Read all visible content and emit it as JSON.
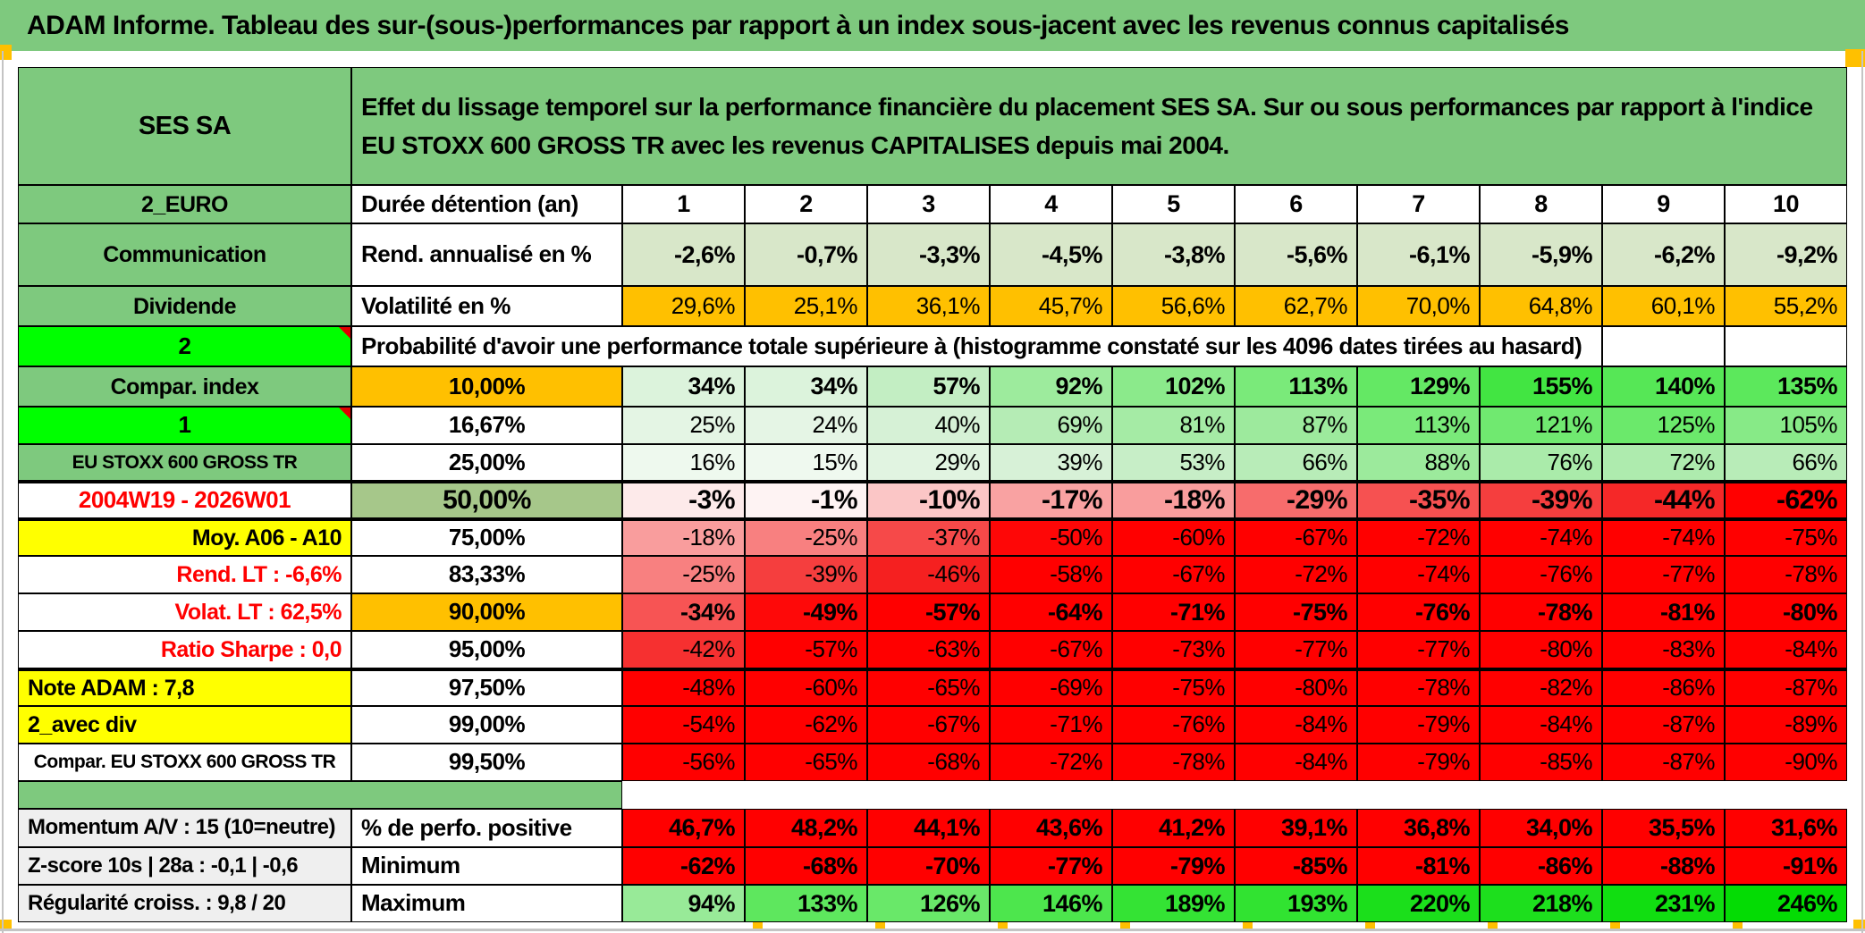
{
  "banner": "ADAM Informe. Tableau des sur-(sous-)performances par rapport à un index sous-jacent avec les revenus connus capitalisés",
  "header": {
    "instrument": "SES SA",
    "description": "Effet du lissage temporel sur la performance financière du placement SES SA. Sur ou sous performances par rapport à l'indice EU STOXX 600 GROSS TR avec les revenus CAPITALISES depuis mai 2004."
  },
  "colors": {
    "band_green": "#7ec97e",
    "bright_green": "#00ff00",
    "orange": "#ffc000",
    "yellow": "#ffff00",
    "light_green": "#d8e7c9",
    "olive_green": "#a6c78a",
    "grey_label": "#efefef",
    "pure_red": "#ff0000",
    "marker_red": "#e00000"
  },
  "grid_rows": [
    {
      "type": "header"
    },
    {
      "type": "data",
      "key": "duree-detention",
      "left": {
        "text": "2_EURO",
        "bg": "#7ec97e",
        "bold": true,
        "align": "center",
        "size": 25
      },
      "mid": {
        "text": "Durée détention (an)",
        "bg": "#ffffff",
        "bold": true,
        "align": "left",
        "size": 26
      },
      "cells": {
        "values": [
          "1",
          "2",
          "3",
          "4",
          "5",
          "6",
          "7",
          "8",
          "9",
          "10"
        ],
        "bg": "#ffffff",
        "bold": true,
        "align": "center",
        "size": 27
      }
    },
    {
      "type": "data",
      "key": "rend-annualise",
      "left": {
        "text": "Communication",
        "bg": "#7ec97e",
        "bold": true,
        "align": "center",
        "size": 25
      },
      "mid": {
        "text": "Rend. annualisé en %",
        "bg": "#ffffff",
        "bold": true,
        "align": "left",
        "size": 26
      },
      "cells": {
        "values": [
          "-2,6%",
          "-0,7%",
          "-3,3%",
          "-4,5%",
          "-3,8%",
          "-5,6%",
          "-6,1%",
          "-5,9%",
          "-6,2%",
          "-9,2%"
        ],
        "bg": "#d8e7c9",
        "bold": true,
        "align": "right",
        "size": 27
      }
    },
    {
      "type": "data",
      "key": "volatilite",
      "left": {
        "text": "Dividende",
        "bg": "#7ec97e",
        "bold": true,
        "align": "center",
        "size": 25
      },
      "mid": {
        "text": "Volatilité en %",
        "bg": "#ffffff",
        "bold": true,
        "align": "left",
        "size": 26
      },
      "cells": {
        "values": [
          "29,6%",
          "25,1%",
          "36,1%",
          "45,7%",
          "56,6%",
          "62,7%",
          "70,0%",
          "64,8%",
          "60,1%",
          "55,2%"
        ],
        "bg": "#ffc000",
        "bold": false,
        "align": "right",
        "size": 26
      }
    },
    {
      "type": "span",
      "key": "proba-header",
      "left": {
        "text": "2",
        "bg": "#00ff00",
        "bold": true,
        "align": "center",
        "size": 26,
        "marker": true
      },
      "span_text": "Probabilité d'avoir une performance totale supérieure à (histogramme constaté sur les 4096 dates tirées au hasard)",
      "empty_bg": "#ffffff"
    },
    {
      "type": "data",
      "key": "p10",
      "left": {
        "text": "Compar. index",
        "bg": "#7ec97e",
        "bold": true,
        "align": "center",
        "size": 25
      },
      "mid": {
        "text": "10,00%",
        "bg": "#ffc000",
        "bold": true,
        "align": "center",
        "size": 26
      },
      "cells": {
        "values": [
          "34%",
          "34%",
          "57%",
          "92%",
          "102%",
          "113%",
          "129%",
          "155%",
          "140%",
          "135%"
        ],
        "bg": [
          "#dcf3dc",
          "#dcf3dc",
          "#c3eec3",
          "#9deb9d",
          "#8bea8b",
          "#7aea7a",
          "#64e864",
          "#42e542",
          "#56e756",
          "#5ce85c"
        ],
        "bold": true,
        "align": "right",
        "size": 27
      }
    },
    {
      "type": "data",
      "key": "p16-67",
      "left": {
        "text": "1",
        "bg": "#00ff00",
        "bold": true,
        "align": "center",
        "size": 26,
        "marker": true
      },
      "mid": {
        "text": "16,67%",
        "bg": "#ffffff",
        "bold": true,
        "align": "center",
        "size": 26
      },
      "cells": {
        "values": [
          "25%",
          "24%",
          "40%",
          "69%",
          "81%",
          "87%",
          "113%",
          "121%",
          "125%",
          "105%"
        ],
        "bg": [
          "#e4f5e4",
          "#e5f5e5",
          "#d6f1d6",
          "#b5ecb5",
          "#a5eba5",
          "#9dea9d",
          "#7aea7a",
          "#70e970",
          "#6be96b",
          "#87ea87"
        ],
        "bold": false,
        "align": "right",
        "size": 26
      }
    },
    {
      "type": "data",
      "key": "p25",
      "left": {
        "text": "EU STOXX 600 GROSS TR",
        "bg": "#7ec97e",
        "bold": true,
        "align": "center",
        "size": 21
      },
      "mid": {
        "text": "25,00%",
        "bg": "#ffffff",
        "bold": true,
        "align": "center",
        "size": 26
      },
      "cells": {
        "values": [
          "16%",
          "15%",
          "29%",
          "39%",
          "53%",
          "66%",
          "88%",
          "76%",
          "72%",
          "66%"
        ],
        "bg": [
          "#eef9ee",
          "#eff9ef",
          "#e1f4e1",
          "#d7f1d7",
          "#c7eec7",
          "#b8ecb8",
          "#9cea9c",
          "#aaebaa",
          "#aeebae",
          "#b8ecb8"
        ],
        "bold": false,
        "align": "right",
        "size": 26
      }
    },
    {
      "type": "data",
      "key": "p50",
      "thick_top": true,
      "left": {
        "text": "2004W19 - 2026W01",
        "bg": "#ffffff",
        "color": "#ff0000",
        "bold": true,
        "align": "center",
        "size": 26
      },
      "mid": {
        "text": "50,00%",
        "bg": "#a6c78a",
        "bold": true,
        "align": "center",
        "size": 30
      },
      "cells": {
        "values": [
          "-3%",
          "-1%",
          "-10%",
          "-17%",
          "-18%",
          "-29%",
          "-35%",
          "-39%",
          "-44%",
          "-62%"
        ],
        "bg": [
          "#fdeaea",
          "#fef3f3",
          "#fbc6c6",
          "#f9a2a2",
          "#f99d9d",
          "#f76c6c",
          "#f65151",
          "#f53e3e",
          "#f52828",
          "#ff0000"
        ],
        "bold": true,
        "align": "right",
        "size": 30
      }
    },
    {
      "type": "data",
      "key": "p75",
      "thick_top": true,
      "left": {
        "text": "Moy. A06 - A10",
        "bg": "#ffff00",
        "bold": true,
        "align": "right",
        "size": 25
      },
      "mid": {
        "text": "75,00%",
        "bg": "#ffffff",
        "bold": true,
        "align": "center",
        "size": 26
      },
      "cells": {
        "values": [
          "-18%",
          "-25%",
          "-37%",
          "-50%",
          "-60%",
          "-67%",
          "-72%",
          "-74%",
          "-74%",
          "-75%"
        ],
        "bg": [
          "#f99d9d",
          "#f88080",
          "#f64949",
          "#fe0707",
          "#ff0000",
          "#ff0000",
          "#ff0000",
          "#ff0000",
          "#ff0000",
          "#ff0000"
        ],
        "bold": false,
        "align": "right",
        "size": 26
      }
    },
    {
      "type": "data",
      "key": "p83-33",
      "left": {
        "text": "Rend. LT :   -6,6%",
        "bg": "#ffffff",
        "color": "#ff0000",
        "bold": true,
        "align": "right",
        "size": 25
      },
      "mid": {
        "text": "83,33%",
        "bg": "#ffffff",
        "bold": true,
        "align": "center",
        "size": 26
      },
      "cells": {
        "values": [
          "-25%",
          "-39%",
          "-46%",
          "-58%",
          "-67%",
          "-72%",
          "-74%",
          "-76%",
          "-77%",
          "-78%"
        ],
        "bg": [
          "#f88080",
          "#f53e3e",
          "#f52020",
          "#ff0000",
          "#ff0000",
          "#ff0000",
          "#ff0000",
          "#ff0000",
          "#ff0000",
          "#ff0000"
        ],
        "bold": false,
        "align": "right",
        "size": 26
      }
    },
    {
      "type": "data",
      "key": "p90",
      "left": {
        "text": "Volat. LT :   62,5%",
        "bg": "#ffffff",
        "color": "#ff0000",
        "bold": true,
        "align": "right",
        "size": 25
      },
      "mid": {
        "text": "90,00%",
        "bg": "#ffc000",
        "bold": true,
        "align": "center",
        "size": 26
      },
      "cells": {
        "values": [
          "-34%",
          "-49%",
          "-57%",
          "-64%",
          "-71%",
          "-75%",
          "-76%",
          "-78%",
          "-81%",
          "-80%"
        ],
        "bg": [
          "#f75454",
          "#fe0909",
          "#ff0000",
          "#ff0000",
          "#ff0000",
          "#ff0000",
          "#ff0000",
          "#ff0000",
          "#ff0000",
          "#ff0000"
        ],
        "bold": true,
        "align": "right",
        "size": 27
      }
    },
    {
      "type": "data",
      "key": "p95",
      "left": {
        "text": "Ratio Sharpe :   0,0",
        "bg": "#ffffff",
        "color": "#ff0000",
        "bold": true,
        "align": "right",
        "size": 25
      },
      "mid": {
        "text": "95,00%",
        "bg": "#ffffff",
        "bold": true,
        "align": "center",
        "size": 26
      },
      "cells": {
        "values": [
          "-42%",
          "-57%",
          "-63%",
          "-67%",
          "-73%",
          "-77%",
          "-77%",
          "-80%",
          "-83%",
          "-84%"
        ],
        "bg": [
          "#f63030",
          "#ff0000",
          "#ff0000",
          "#ff0000",
          "#ff0000",
          "#ff0000",
          "#ff0000",
          "#ff0000",
          "#ff0000",
          "#ff0000"
        ],
        "bold": false,
        "align": "right",
        "size": 26
      }
    },
    {
      "type": "data",
      "key": "p97-5",
      "thick_top": true,
      "left": {
        "text": "Note ADAM : 7,8",
        "bg": "#ffff00",
        "bold": true,
        "align": "left",
        "size": 25
      },
      "mid": {
        "text": "97,50%",
        "bg": "#ffffff",
        "bold": true,
        "align": "center",
        "size": 26
      },
      "cells": {
        "values": [
          "-48%",
          "-60%",
          "-65%",
          "-69%",
          "-75%",
          "-80%",
          "-78%",
          "-82%",
          "-86%",
          "-87%"
        ],
        "bg": "#ff0000",
        "bold": false,
        "align": "right",
        "size": 26
      }
    },
    {
      "type": "data",
      "key": "p99",
      "left": {
        "text": "2_avec div",
        "bg": "#ffff00",
        "bold": true,
        "align": "left",
        "size": 25
      },
      "mid": {
        "text": "99,00%",
        "bg": "#ffffff",
        "bold": true,
        "align": "center",
        "size": 26
      },
      "cells": {
        "values": [
          "-54%",
          "-62%",
          "-67%",
          "-71%",
          "-76%",
          "-84%",
          "-79%",
          "-84%",
          "-87%",
          "-89%"
        ],
        "bg": "#ff0000",
        "bold": false,
        "align": "right",
        "size": 26
      }
    },
    {
      "type": "data",
      "key": "p99-5",
      "left": {
        "text": "Compar. EU STOXX 600 GROSS TR",
        "bg": "#ffffff",
        "bold": true,
        "align": "center",
        "size": 21
      },
      "mid": {
        "text": "99,50%",
        "bg": "#ffffff",
        "bold": true,
        "align": "center",
        "size": 26
      },
      "cells": {
        "values": [
          "-56%",
          "-65%",
          "-68%",
          "-72%",
          "-78%",
          "-84%",
          "-79%",
          "-85%",
          "-87%",
          "-90%"
        ],
        "bg": "#ff0000",
        "bold": false,
        "align": "right",
        "size": 26
      }
    },
    {
      "type": "separator",
      "bg": "#7ec97e"
    },
    {
      "type": "data",
      "key": "perfo-positive",
      "left": {
        "text": "Momentum A/V : 15 (10=neutre)",
        "bg": "#efefef",
        "bold": true,
        "align": "left",
        "size": 24
      },
      "mid": {
        "text": "% de perfo. positive",
        "bg": "#ffffff",
        "bold": true,
        "align": "left",
        "size": 26
      },
      "cells": {
        "values": [
          "46,7%",
          "48,2%",
          "44,1%",
          "43,6%",
          "41,2%",
          "39,1%",
          "36,8%",
          "34,0%",
          "35,5%",
          "31,6%"
        ],
        "bg": "#ff0000",
        "bold": true,
        "align": "right",
        "size": 27
      }
    },
    {
      "type": "data",
      "key": "minimum",
      "left": {
        "text": "Z-score 10s | 28a : -0,1 | -0,6",
        "bg": "#efefef",
        "bold": true,
        "align": "left",
        "size": 24
      },
      "mid": {
        "text": "Minimum",
        "bg": "#ffffff",
        "bold": true,
        "align": "left",
        "size": 26
      },
      "cells": {
        "values": [
          "-62%",
          "-68%",
          "-70%",
          "-77%",
          "-79%",
          "-85%",
          "-81%",
          "-86%",
          "-88%",
          "-91%"
        ],
        "bg": "#ff0000",
        "bold": true,
        "align": "right",
        "size": 27
      }
    },
    {
      "type": "data",
      "key": "maximum",
      "left": {
        "text": "Régularité croiss. : 9,8 / 20",
        "bg": "#efefef",
        "bold": true,
        "align": "left",
        "size": 24
      },
      "mid": {
        "text": "Maximum",
        "bg": "#ffffff",
        "bold": true,
        "align": "left",
        "size": 26
      },
      "cells": {
        "values": [
          "94%",
          "133%",
          "126%",
          "146%",
          "189%",
          "193%",
          "220%",
          "218%",
          "231%",
          "246%"
        ],
        "bg": [
          "#98ea98",
          "#5ee75e",
          "#69e869",
          "#4de64d",
          "#34e334",
          "#31e331",
          "#1bdf1b",
          "#1ddf1d",
          "#11de11",
          "#04dc04"
        ],
        "bold": true,
        "align": "right",
        "size": 27
      }
    }
  ]
}
